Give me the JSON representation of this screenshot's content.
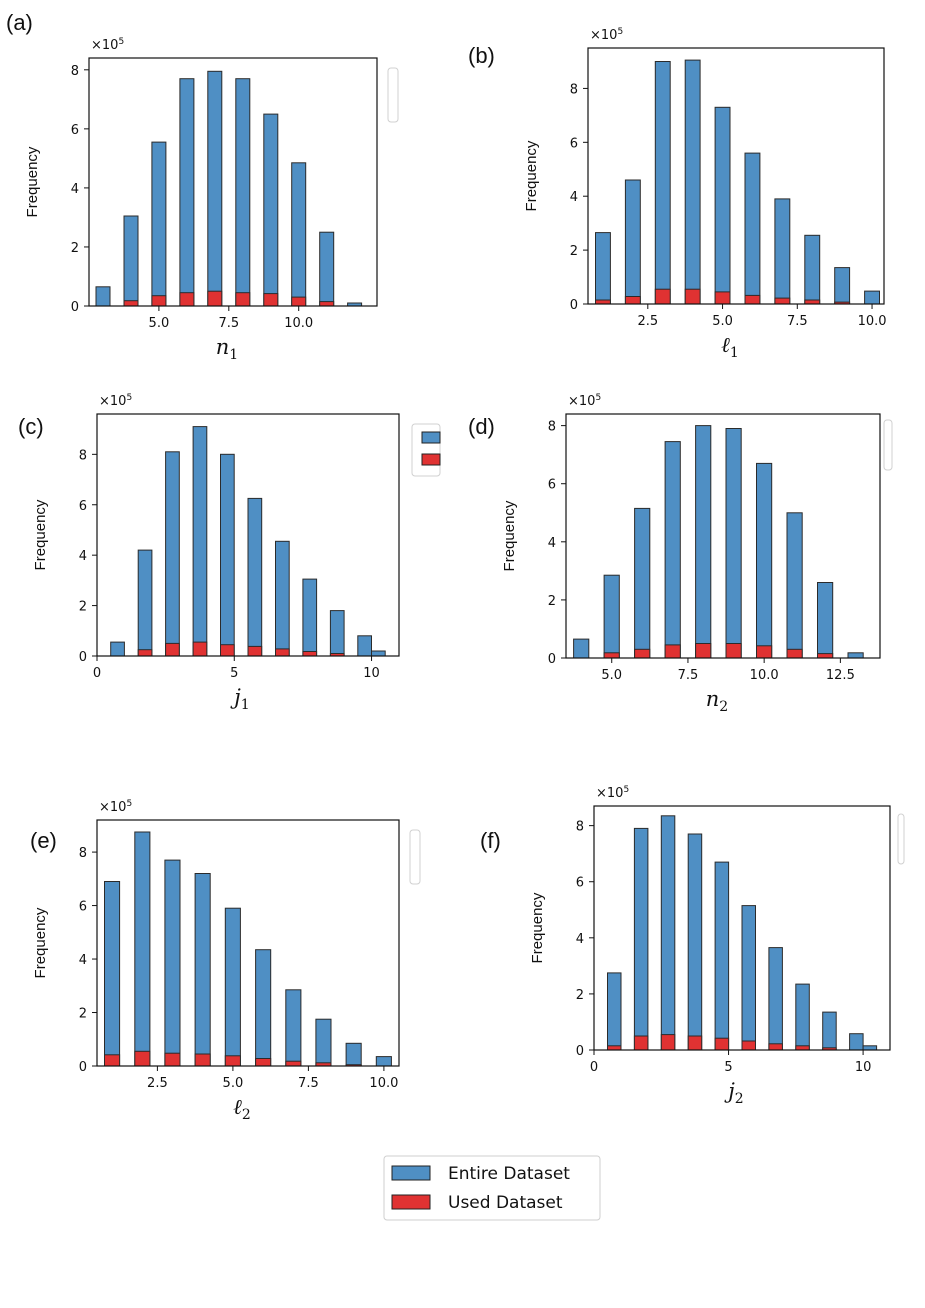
{
  "legend": {
    "entries": [
      {
        "label": "Entire Dataset",
        "color": "#4f8fc4"
      },
      {
        "label": "Used Dataset",
        "color": "#e03232"
      }
    ]
  },
  "chart_data": [
    {
      "panel": "(a)",
      "type": "bar",
      "multiplier": "×10",
      "multiplier_exp": "5",
      "ylabel": "Frequency",
      "xlabel": "n",
      "xlabel_sub": "1",
      "xlim": [
        2.5,
        12.8
      ],
      "ylim": [
        0,
        8.4
      ],
      "xticks": [
        {
          "v": 5.0,
          "t": "5.0"
        },
        {
          "v": 7.5,
          "t": "7.5"
        },
        {
          "v": 10.0,
          "t": "10.0"
        }
      ],
      "yticks": [
        {
          "v": 0,
          "t": "0"
        },
        {
          "v": 2,
          "t": "2"
        },
        {
          "v": 4,
          "t": "4"
        },
        {
          "v": 6,
          "t": "6"
        },
        {
          "v": 8,
          "t": "8"
        }
      ],
      "x": [
        3,
        4,
        5,
        6,
        7,
        8,
        9,
        10,
        11,
        12
      ],
      "bar_width": 0.5,
      "series": [
        {
          "name": "Entire Dataset",
          "values": [
            0.65,
            3.05,
            5.55,
            7.7,
            7.95,
            7.7,
            6.5,
            4.85,
            2.5,
            0.1
          ]
        },
        {
          "name": "Used Dataset",
          "values": [
            0.0,
            0.18,
            0.35,
            0.45,
            0.5,
            0.45,
            0.42,
            0.3,
            0.15,
            0.0
          ]
        }
      ]
    },
    {
      "panel": "(b)",
      "type": "bar",
      "multiplier": "×10",
      "multiplier_exp": "5",
      "ylabel": "Frequency",
      "xlabel": "ℓ",
      "xlabel_sub": "1",
      "xlim": [
        0.5,
        10.4
      ],
      "ylim": [
        0,
        9.5
      ],
      "xticks": [
        {
          "v": 2.5,
          "t": "2.5"
        },
        {
          "v": 5.0,
          "t": "5.0"
        },
        {
          "v": 7.5,
          "t": "7.5"
        },
        {
          "v": 10.0,
          "t": "10.0"
        }
      ],
      "yticks": [
        {
          "v": 0,
          "t": "0"
        },
        {
          "v": 2,
          "t": "2"
        },
        {
          "v": 4,
          "t": "4"
        },
        {
          "v": 6,
          "t": "6"
        },
        {
          "v": 8,
          "t": "8"
        }
      ],
      "x": [
        1,
        2,
        3,
        4,
        5,
        6,
        7,
        8,
        9,
        10
      ],
      "bar_width": 0.5,
      "series": [
        {
          "name": "Entire Dataset",
          "values": [
            2.65,
            4.6,
            9.0,
            9.05,
            7.3,
            5.6,
            3.9,
            2.55,
            1.35,
            0.48
          ]
        },
        {
          "name": "Used Dataset",
          "values": [
            0.15,
            0.28,
            0.55,
            0.55,
            0.45,
            0.32,
            0.22,
            0.15,
            0.07,
            0.0
          ]
        }
      ]
    },
    {
      "panel": "(c)",
      "type": "bar",
      "multiplier": "×10",
      "multiplier_exp": "5",
      "ylabel": "Frequency",
      "xlabel": "j",
      "xlabel_sub": "1",
      "xlim": [
        0,
        11
      ],
      "ylim": [
        0,
        9.6
      ],
      "xticks": [
        {
          "v": 0,
          "t": "0"
        },
        {
          "v": 5,
          "t": "5"
        },
        {
          "v": 10,
          "t": "10"
        }
      ],
      "yticks": [
        {
          "v": 0,
          "t": "0"
        },
        {
          "v": 2,
          "t": "2"
        },
        {
          "v": 4,
          "t": "4"
        },
        {
          "v": 6,
          "t": "6"
        },
        {
          "v": 8,
          "t": "8"
        }
      ],
      "x": [
        0.75,
        1.75,
        2.75,
        3.75,
        4.75,
        5.75,
        6.75,
        7.75,
        8.75,
        9.75
      ],
      "x_extra": 10.25,
      "bar_width": 0.5,
      "series": [
        {
          "name": "Entire Dataset",
          "values": [
            0.55,
            4.2,
            8.1,
            9.1,
            8.0,
            6.25,
            4.55,
            3.05,
            1.8,
            0.8
          ],
          "extra": 0.2
        },
        {
          "name": "Used Dataset",
          "values": [
            0.0,
            0.25,
            0.5,
            0.55,
            0.45,
            0.38,
            0.28,
            0.18,
            0.1,
            0.0
          ],
          "extra": 0.0
        }
      ]
    },
    {
      "panel": "(d)",
      "type": "bar",
      "multiplier": "×10",
      "multiplier_exp": "5",
      "ylabel": "Frequency",
      "xlabel": "n",
      "xlabel_sub": "2",
      "xlim": [
        3.5,
        13.8
      ],
      "ylim": [
        0,
        8.4
      ],
      "xticks": [
        {
          "v": 5.0,
          "t": "5.0"
        },
        {
          "v": 7.5,
          "t": "7.5"
        },
        {
          "v": 10.0,
          "t": "10.0"
        },
        {
          "v": 12.5,
          "t": "12.5"
        }
      ],
      "yticks": [
        {
          "v": 0,
          "t": "0"
        },
        {
          "v": 2,
          "t": "2"
        },
        {
          "v": 4,
          "t": "4"
        },
        {
          "v": 6,
          "t": "6"
        },
        {
          "v": 8,
          "t": "8"
        }
      ],
      "x": [
        4,
        5,
        6,
        7,
        8,
        9,
        10,
        11,
        12,
        13
      ],
      "bar_width": 0.5,
      "series": [
        {
          "name": "Entire Dataset",
          "values": [
            0.65,
            2.85,
            5.15,
            7.45,
            8.0,
            7.9,
            6.7,
            5.0,
            2.6,
            0.18
          ]
        },
        {
          "name": "Used Dataset",
          "values": [
            0.0,
            0.18,
            0.3,
            0.45,
            0.5,
            0.5,
            0.42,
            0.3,
            0.15,
            0.0
          ]
        }
      ]
    },
    {
      "panel": "(e)",
      "type": "bar",
      "multiplier": "×10",
      "multiplier_exp": "5",
      "ylabel": "Frequency",
      "xlabel": "ℓ",
      "xlabel_sub": "2",
      "xlim": [
        0.5,
        10.5
      ],
      "ylim": [
        0,
        9.2
      ],
      "xticks": [
        {
          "v": 2.5,
          "t": "2.5"
        },
        {
          "v": 5.0,
          "t": "5.0"
        },
        {
          "v": 7.5,
          "t": "7.5"
        },
        {
          "v": 10.0,
          "t": "10.0"
        }
      ],
      "yticks": [
        {
          "v": 0,
          "t": "0"
        },
        {
          "v": 2,
          "t": "2"
        },
        {
          "v": 4,
          "t": "4"
        },
        {
          "v": 6,
          "t": "6"
        },
        {
          "v": 8,
          "t": "8"
        }
      ],
      "x": [
        1,
        2,
        3,
        4,
        5,
        6,
        7,
        8,
        9,
        10
      ],
      "bar_width": 0.5,
      "series": [
        {
          "name": "Entire Dataset",
          "values": [
            6.9,
            8.75,
            7.7,
            7.2,
            5.9,
            4.35,
            2.85,
            1.75,
            0.85,
            0.35
          ]
        },
        {
          "name": "Used Dataset",
          "values": [
            0.42,
            0.55,
            0.48,
            0.45,
            0.38,
            0.28,
            0.18,
            0.12,
            0.05,
            0.0
          ]
        }
      ]
    },
    {
      "panel": "(f)",
      "type": "bar",
      "multiplier": "×10",
      "multiplier_exp": "5",
      "ylabel": "Frequency",
      "xlabel": "j",
      "xlabel_sub": "2",
      "xlim": [
        0,
        11
      ],
      "ylim": [
        0,
        8.7
      ],
      "xticks": [
        {
          "v": 0,
          "t": "0"
        },
        {
          "v": 5,
          "t": "5"
        },
        {
          "v": 10,
          "t": "10"
        }
      ],
      "yticks": [
        {
          "v": 0,
          "t": "0"
        },
        {
          "v": 2,
          "t": "2"
        },
        {
          "v": 4,
          "t": "4"
        },
        {
          "v": 6,
          "t": "6"
        },
        {
          "v": 8,
          "t": "8"
        }
      ],
      "x": [
        0.75,
        1.75,
        2.75,
        3.75,
        4.75,
        5.75,
        6.75,
        7.75,
        8.75,
        9.75
      ],
      "x_extra": 10.25,
      "bar_width": 0.5,
      "series": [
        {
          "name": "Entire Dataset",
          "values": [
            2.75,
            7.9,
            8.35,
            7.7,
            6.7,
            5.15,
            3.65,
            2.35,
            1.35,
            0.58
          ],
          "extra": 0.15
        },
        {
          "name": "Used Dataset",
          "values": [
            0.15,
            0.5,
            0.55,
            0.5,
            0.42,
            0.32,
            0.22,
            0.15,
            0.08,
            0.0
          ],
          "extra": 0.0
        }
      ]
    }
  ]
}
